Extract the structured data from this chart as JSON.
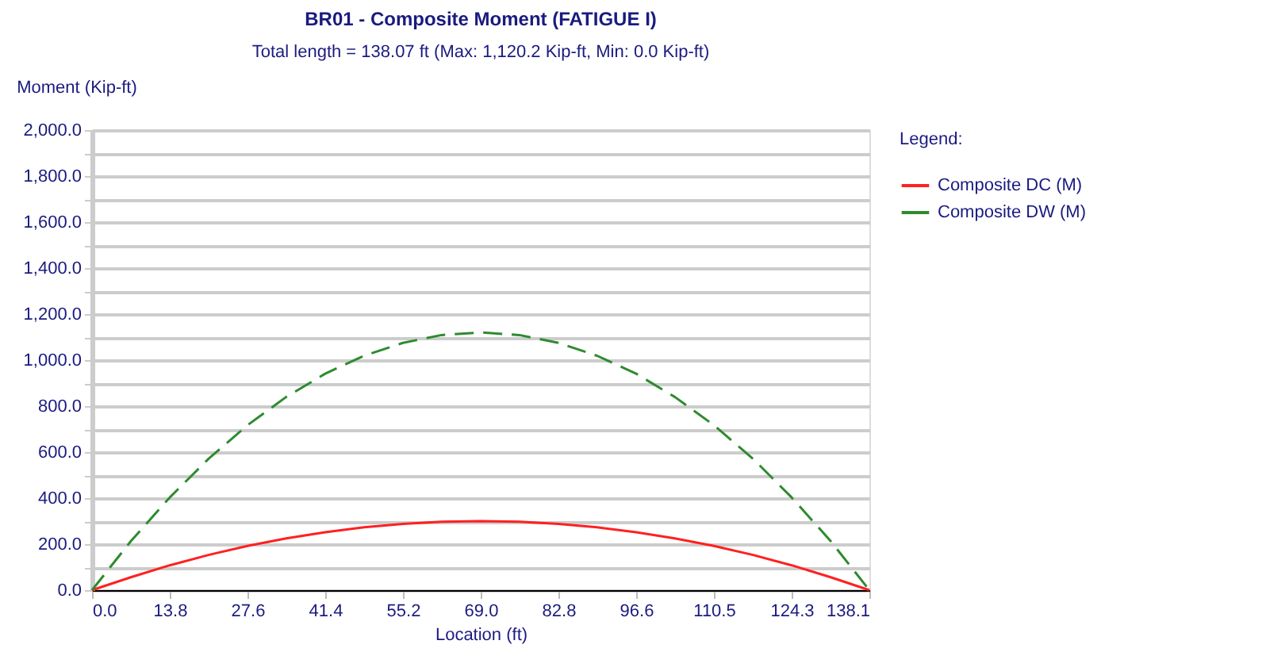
{
  "chart_data": {
    "type": "line",
    "title": "BR01 - Composite Moment (FATIGUE I)",
    "subtitle": "Total length = 138.07 ft (Max: 1,120.2 Kip-ft, Min: 0.0 Kip-ft)",
    "xlabel": "Location (ft)",
    "ylabel": "Moment (Kip-ft)",
    "legend_title": "Legend:",
    "x": [
      0,
      6.9,
      13.807,
      20.7,
      27.614,
      34.5,
      41.421,
      48.3,
      55.228,
      62.1,
      69.035,
      75.9,
      82.842,
      89.7,
      96.649,
      103.5,
      110.456,
      117.4,
      124.263,
      131.2,
      138.07
    ],
    "series": [
      {
        "name": "Composite DC (M)",
        "color": "#ff2020",
        "line_style": "solid",
        "values": [
          0,
          56,
          108,
          153,
          192,
          225,
          252,
          273,
          288,
          297,
          300,
          297,
          288,
          273,
          252,
          225,
          192,
          153,
          108,
          56,
          0
        ]
      },
      {
        "name": "Composite DW (M)",
        "color": "#2e8b2e",
        "line_style": "dashed",
        "values": [
          0,
          213,
          403,
          571,
          717,
          840,
          941,
          1019,
          1075,
          1109,
          1120.2,
          1109,
          1075,
          1019,
          941,
          840,
          717,
          571,
          403,
          213,
          0
        ]
      }
    ],
    "xlim": [
      0,
      138.07
    ],
    "xticks": [
      {
        "value": 0,
        "label": "0.0"
      },
      {
        "value": 13.807,
        "label": "13.8"
      },
      {
        "value": 27.614,
        "label": "27.6"
      },
      {
        "value": 41.421,
        "label": "41.4"
      },
      {
        "value": 55.228,
        "label": "55.2"
      },
      {
        "value": 69.035,
        "label": "69.0"
      },
      {
        "value": 82.842,
        "label": "82.8"
      },
      {
        "value": 96.649,
        "label": "96.6"
      },
      {
        "value": 110.456,
        "label": "110.5"
      },
      {
        "value": 124.263,
        "label": "124.3"
      },
      {
        "value": 138.07,
        "label": "138.1"
      }
    ],
    "ylim": [
      0,
      2000
    ],
    "yticks": [
      {
        "value": 0,
        "label": "0.0"
      },
      {
        "value": 100,
        "label": null
      },
      {
        "value": 200,
        "label": "200.0"
      },
      {
        "value": 300,
        "label": null
      },
      {
        "value": 400,
        "label": "400.0"
      },
      {
        "value": 500,
        "label": null
      },
      {
        "value": 600,
        "label": "600.0"
      },
      {
        "value": 700,
        "label": null
      },
      {
        "value": 800,
        "label": "800.0"
      },
      {
        "value": 900,
        "label": null
      },
      {
        "value": 1000,
        "label": "1,000.0"
      },
      {
        "value": 1100,
        "label": null
      },
      {
        "value": 1200,
        "label": "1,200.0"
      },
      {
        "value": 1300,
        "label": null
      },
      {
        "value": 1400,
        "label": "1,400.0"
      },
      {
        "value": 1500,
        "label": null
      },
      {
        "value": 1600,
        "label": "1,600.0"
      },
      {
        "value": 1700,
        "label": null
      },
      {
        "value": 1800,
        "label": "1,800.0"
      },
      {
        "value": 1900,
        "label": null
      },
      {
        "value": 2000,
        "label": "2,000.0"
      }
    ],
    "grid": "y",
    "legend": "right",
    "marker": "none"
  }
}
